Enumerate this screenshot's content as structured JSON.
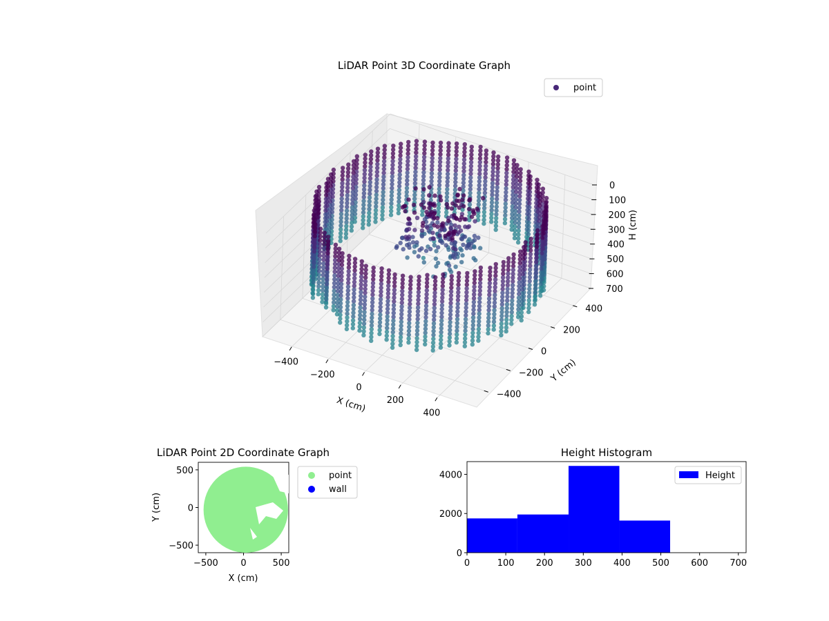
{
  "chart_data": [
    {
      "type": "scatter3d",
      "title": "LiDAR Point 3D Coordinate Graph",
      "xlabel": "X (cm)",
      "ylabel": "Y (cm)",
      "zlabel": "H (cm)",
      "xlim": [
        -560,
        560
      ],
      "ylim": [
        -560,
        560
      ],
      "zlim": [
        0,
        700
      ],
      "z_inverted": true,
      "xticks": [
        "−400",
        "−200",
        "0",
        "200",
        "400"
      ],
      "yticks": [
        "−400",
        "−200",
        "0",
        "200",
        "400"
      ],
      "zticks": [
        "0",
        "100",
        "200",
        "300",
        "400",
        "500",
        "600",
        "700"
      ],
      "legend": {
        "labels": [
          "point"
        ],
        "placement": "upper-right"
      },
      "colormap": [
        "#440154",
        "#482878",
        "#3e4989",
        "#31688e",
        "#26828e"
      ],
      "grid": true,
      "series": [
        {
          "name": "point",
          "description_shape": "cylindrical wall ring r≈540cm, heights 0-520cm, plus interior clutter",
          "ring_radius": 540,
          "height_range": [
            0,
            520
          ]
        }
      ]
    },
    {
      "type": "scatter",
      "title": "LiDAR Point 2D Coordinate Graph",
      "xlabel": "X (cm)",
      "ylabel": "Y (cm)",
      "xlim": [
        -600,
        600
      ],
      "ylim": [
        -600,
        600
      ],
      "xticks": [
        "−500",
        "0",
        "500"
      ],
      "yticks": [
        "500",
        "0",
        "−500"
      ],
      "legend": {
        "labels": [
          "point",
          "wall"
        ],
        "colors": [
          "#90ee90",
          "#0000ff"
        ],
        "placement": "outside-right"
      },
      "series": [
        {
          "name": "point",
          "color": "#90ee90",
          "center": [
            30,
            -30
          ],
          "radius": 560
        },
        {
          "name": "wall",
          "color": "#0000ff",
          "values": []
        }
      ]
    },
    {
      "type": "bar",
      "title": "Height Histogram",
      "xlabel": "",
      "ylabel": "",
      "xlim": [
        0,
        720
      ],
      "ylim": [
        0,
        4650
      ],
      "xticks": [
        "0",
        "100",
        "200",
        "300",
        "400",
        "500",
        "600",
        "700"
      ],
      "yticks": [
        "0",
        "2000",
        "4000"
      ],
      "color": "#0000ff",
      "legend": {
        "labels": [
          "Height"
        ],
        "placement": "upper-right"
      },
      "bins": [
        {
          "start": 0,
          "end": 130,
          "count": 1750
        },
        {
          "start": 130,
          "end": 262,
          "count": 1950
        },
        {
          "start": 262,
          "end": 393,
          "count": 4430
        },
        {
          "start": 393,
          "end": 524,
          "count": 1640
        }
      ]
    }
  ]
}
